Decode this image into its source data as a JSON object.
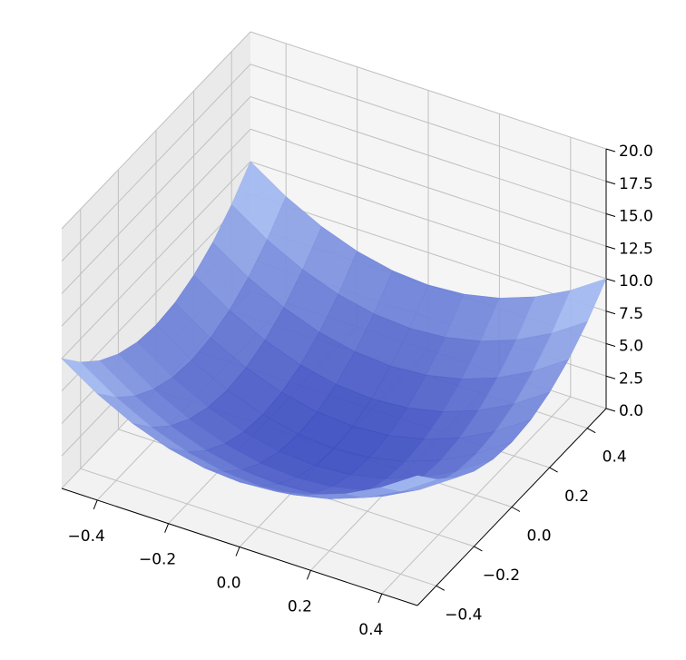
{
  "chart_data": {
    "type": "surface",
    "x": [
      -0.5,
      -0.4,
      -0.3,
      -0.2,
      -0.1,
      0,
      0.1,
      0.2,
      0.3,
      0.4,
      0.5
    ],
    "y": [
      -0.5,
      -0.4,
      -0.3,
      -0.2,
      -0.1,
      0,
      0.1,
      0.2,
      0.3,
      0.4,
      0.5
    ],
    "z": [
      [
        10,
        8.2,
        6.8,
        5.8,
        5.2,
        5,
        5.2,
        5.8,
        6.8,
        8.2,
        10
      ],
      [
        8.2,
        6.4,
        5,
        4,
        3.4,
        3.2,
        3.4,
        4,
        5,
        6.4,
        8.2
      ],
      [
        6.8,
        5,
        3.6,
        2.6,
        2,
        1.8,
        2,
        2.6,
        3.6,
        5,
        6.8
      ],
      [
        5.8,
        4,
        2.6,
        1.6,
        1,
        0.8,
        1,
        1.6,
        2.6,
        4,
        5.8
      ],
      [
        5.2,
        3.4,
        2,
        1,
        0.4,
        0.2,
        0.4,
        1,
        2,
        3.4,
        5.2
      ],
      [
        5,
        3.2,
        1.8,
        0.8,
        0.2,
        0,
        0.2,
        0.8,
        1.8,
        3.2,
        5
      ],
      [
        5.2,
        3.4,
        2,
        1,
        0.4,
        0.2,
        0.4,
        1,
        2,
        3.4,
        5.2
      ],
      [
        5.8,
        4,
        2.6,
        1.6,
        1,
        0.8,
        1,
        1.6,
        2.6,
        4,
        5.8
      ],
      [
        6.8,
        5,
        3.6,
        2.6,
        2,
        1.8,
        2,
        2.6,
        3.6,
        5,
        6.8
      ],
      [
        8.2,
        6.4,
        5,
        4,
        3.4,
        3.2,
        3.4,
        4,
        5,
        6.4,
        8.2
      ],
      [
        10,
        8.2,
        6.8,
        5.8,
        5.2,
        5,
        5.2,
        5.8,
        6.8,
        8.2,
        10
      ]
    ],
    "xlim": [
      -0.5,
      0.5
    ],
    "ylim": [
      -0.5,
      0.5
    ],
    "zlim": [
      0,
      20
    ],
    "xticks": [
      {
        "value": -0.4,
        "label": "−0.4"
      },
      {
        "value": -0.2,
        "label": "−0.2"
      },
      {
        "value": 0,
        "label": "0.0"
      },
      {
        "value": 0.2,
        "label": "0.2"
      },
      {
        "value": 0.4,
        "label": "0.4"
      }
    ],
    "yticks": [
      {
        "value": -0.4,
        "label": "−0.4"
      },
      {
        "value": -0.2,
        "label": "−0.2"
      },
      {
        "value": 0,
        "label": "0.0"
      },
      {
        "value": 0.2,
        "label": "0.2"
      },
      {
        "value": 0.4,
        "label": "0.4"
      }
    ],
    "zticks": [
      {
        "value": 0,
        "label": "0.0"
      },
      {
        "value": 2.5,
        "label": "2.5"
      },
      {
        "value": 5,
        "label": "5.0"
      },
      {
        "value": 7.5,
        "label": "7.5"
      },
      {
        "value": 10,
        "label": "10.0"
      },
      {
        "value": 12.5,
        "label": "12.5"
      },
      {
        "value": 15,
        "label": "15.0"
      },
      {
        "value": 17.5,
        "label": "17.5"
      },
      {
        "value": 20,
        "label": "20.0"
      }
    ],
    "colormap": [
      "#3b4cc0",
      "#b8d0f9"
    ],
    "grid": true
  }
}
